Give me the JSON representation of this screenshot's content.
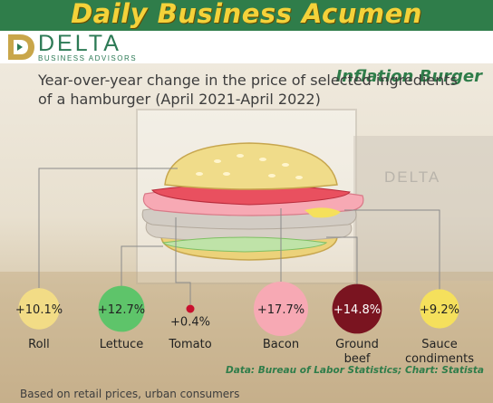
{
  "header": {
    "brand_title": "Daily Business Acumen",
    "section_title": "Inflation Burger"
  },
  "logo": {
    "name": "DELTA",
    "sub": "BUSINESS ADVISORS"
  },
  "colors": {
    "band": "#2f7d4a",
    "title_yellow": "#f4d23a",
    "roll": "#f2dc86",
    "lettuce": "#5ec46a",
    "tomato": "#c8102e",
    "bacon": "#f7a9b4",
    "ground_beef": "#7a1420",
    "sauce": "#f5e05c"
  },
  "chart_data": {
    "type": "bubble",
    "title": "Year-over-year change in the price of selected ingredients of a hamburger (April 2021-April 2022)",
    "categories": [
      "Roll",
      "Lettuce",
      "Tomato",
      "Bacon",
      "Ground beef",
      "Sauce condiments"
    ],
    "values": [
      10.1,
      12.7,
      0.4,
      17.7,
      14.8,
      9.2
    ],
    "value_labels": [
      "+10.1%",
      "+12.7%",
      "+0.4%",
      "+17.7%",
      "+14.8%",
      "+9.2%"
    ],
    "category_label_lines": [
      [
        "Roll"
      ],
      [
        "Lettuce"
      ],
      [
        "Tomato"
      ],
      [
        "Bacon"
      ],
      [
        "Ground",
        "beef"
      ],
      [
        "Sauce",
        "condiments"
      ]
    ],
    "unit": "%"
  },
  "source": "Data: Bureau of Labor Statistics; Chart: Statista",
  "footnote": "Based on retail prices, urban consumers"
}
